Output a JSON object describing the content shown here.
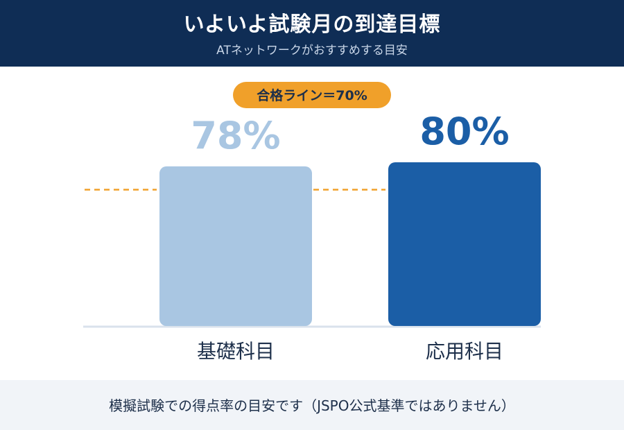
{
  "header": {
    "title": "いよいよ試験月の到達目標",
    "subtitle": "ATネットワークがおすすめする目安"
  },
  "footer": {
    "note": "模擬試験での得点率の目安です（JSPO公式基準ではありません）"
  },
  "chart_data": {
    "type": "bar",
    "categories": [
      "基礎科目",
      "応用科目"
    ],
    "values": [
      78,
      80
    ],
    "value_labels": [
      "78%",
      "80%"
    ],
    "unit": "%",
    "threshold": {
      "value": 70,
      "label": "合格ライン＝70%",
      "color": "#f0a02a"
    },
    "bar_colors": [
      "#a9c6e2",
      "#1b5ea6"
    ],
    "label_colors": [
      "#a9c6e2",
      "#1b5ea6"
    ],
    "grid": false,
    "title": "",
    "xlabel": "",
    "ylabel": ""
  }
}
